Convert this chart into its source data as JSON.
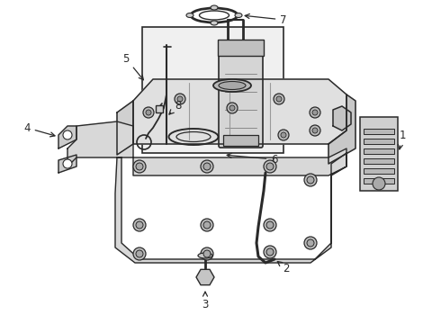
{
  "bg_color": "#ffffff",
  "lc": "#2a2a2a",
  "fig_w": 4.9,
  "fig_h": 3.6,
  "dpi": 100
}
